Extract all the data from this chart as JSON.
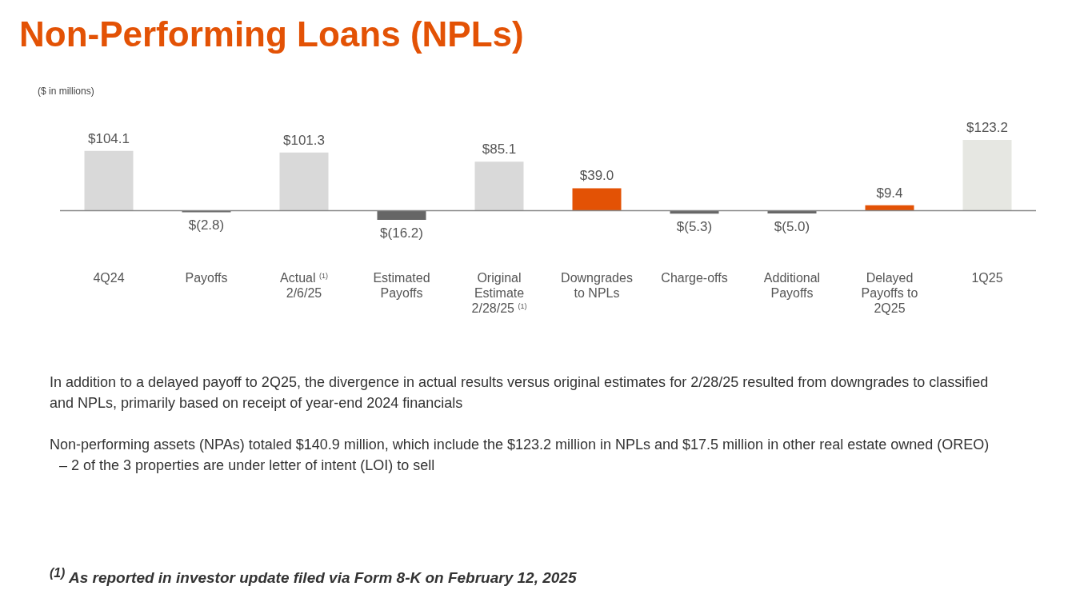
{
  "chart_data": {
    "type": "bar",
    "title": "Non-Performing Loans (NPLs)",
    "subtitle": "($ in millions)",
    "categories": [
      "4Q24",
      "Payoffs",
      "Actual $^{(1)}$\n2/6/25",
      "Estimated\nPayoffs",
      "Original\nEstimate\n2/28/25 $^{(1)}$",
      "Downgrades\nto NPLs",
      "Charge-offs",
      "Additional\nPayoffs",
      "Delayed\nPayoffs to\n2Q25",
      "1Q25"
    ],
    "values": [
      104.1,
      -2.8,
      101.3,
      -16.2,
      85.1,
      39.0,
      -5.3,
      -5.0,
      9.4,
      123.2
    ],
    "colors": [
      "#d9d9d9",
      "#666666",
      "#d9d9d9",
      "#666666",
      "#d9d9d9",
      "#e35205",
      "#666666",
      "#666666",
      "#e35205",
      "#e6e7e2"
    ],
    "value_labels": [
      "$104.1",
      "$(2.8)",
      "$101.3",
      "$(16.2)",
      "$85.1",
      "$39.0",
      "$(5.3)",
      "$(5.0)",
      "$9.4",
      "$123.2"
    ],
    "annotations": [
      "In addition to a delayed payoff to 2Q25, the divergence in actual results versus original estimates for 2/28/25 resulted from downgrades to classified and NPLs, primarily based on receipt of year-end 2024 financials",
      "Non-performing assets (NPAs) totaled $140.9 million, which include the $123.2 million in NPLs and $17.5 million in other real estate owned (OREO)",
      "– 2 of the 3 properties are under letter of intent (LOI) to sell",
      "$^{(1)}$ As reported in investor update filed via Form 8-K on February 12, 2025"
    ],
    "legend": false
  }
}
